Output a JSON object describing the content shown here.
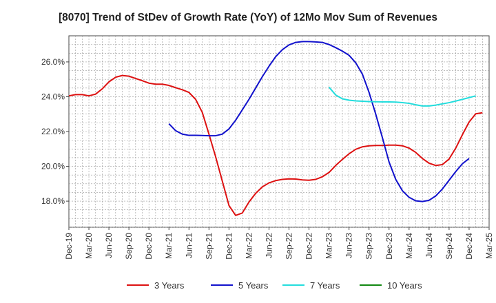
{
  "chart_data": {
    "type": "line",
    "title": "[8070]  Trend of StDev of Growth Rate (YoY) of 12Mo Mov Sum of Revenues",
    "xlabel": "",
    "ylabel": "",
    "ylim": [
      16.5,
      27.5
    ],
    "y_ticks": [
      18.0,
      20.0,
      22.0,
      24.0,
      26.0
    ],
    "y_tick_labels": [
      "18.0%",
      "20.0%",
      "22.0%",
      "24.0%",
      "26.0%"
    ],
    "x_tick_labels": [
      "Dec-19",
      "Mar-20",
      "Jun-20",
      "Sep-20",
      "Dec-20",
      "Mar-21",
      "Jun-21",
      "Sep-21",
      "Dec-21",
      "Mar-22",
      "Jun-22",
      "Sep-22",
      "Dec-22",
      "Mar-23",
      "Jun-23",
      "Sep-23",
      "Dec-23",
      "Mar-24",
      "Jun-24",
      "Sep-24",
      "Dec-24",
      "Mar-25"
    ],
    "x_start": "Dec-19",
    "months_count": 64,
    "grid": true,
    "legend_position": "bottom",
    "series": [
      {
        "name": "3 Years",
        "color": "#dd1111",
        "start_index": 0,
        "values": [
          24.05,
          24.12,
          24.12,
          24.05,
          24.15,
          24.45,
          24.85,
          25.12,
          25.22,
          25.18,
          25.05,
          24.92,
          24.78,
          24.72,
          24.72,
          24.65,
          24.52,
          24.4,
          24.25,
          23.85,
          23.1,
          21.85,
          20.55,
          19.15,
          17.75,
          17.18,
          17.32,
          17.95,
          18.45,
          18.82,
          19.05,
          19.18,
          19.25,
          19.28,
          19.27,
          19.22,
          19.2,
          19.25,
          19.4,
          19.65,
          20.05,
          20.4,
          20.72,
          20.98,
          21.12,
          21.18,
          21.2,
          21.2,
          21.22,
          21.22,
          21.18,
          21.05,
          20.8,
          20.45,
          20.18,
          20.05,
          20.1,
          20.42,
          21.05,
          21.82,
          22.55,
          23.02,
          23.08
        ]
      },
      {
        "name": "5 Years",
        "color": "#1111cc",
        "start_index": 15,
        "values": [
          22.45,
          22.05,
          21.85,
          21.78,
          21.78,
          21.77,
          21.76,
          21.76,
          21.85,
          22.15,
          22.65,
          23.25,
          23.85,
          24.5,
          25.15,
          25.75,
          26.3,
          26.7,
          26.98,
          27.12,
          27.17,
          27.17,
          27.15,
          27.12,
          27.0,
          26.82,
          26.62,
          26.38,
          25.95,
          25.3,
          24.25,
          23.0,
          21.65,
          20.25,
          19.25,
          18.6,
          18.22,
          18.02,
          17.98,
          18.05,
          18.3,
          18.7,
          19.2,
          19.7,
          20.15,
          20.45
        ]
      },
      {
        "name": "7 Years",
        "color": "#22dddd",
        "start_index": 39,
        "values": [
          24.55,
          24.1,
          23.88,
          23.8,
          23.76,
          23.74,
          23.72,
          23.71,
          23.7,
          23.7,
          23.69,
          23.66,
          23.62,
          23.54,
          23.47,
          23.47,
          23.52,
          23.59,
          23.66,
          23.75,
          23.85,
          23.95,
          24.05
        ]
      },
      {
        "name": "10 Years",
        "color": "#118811",
        "start_index": 0,
        "values": []
      }
    ]
  }
}
